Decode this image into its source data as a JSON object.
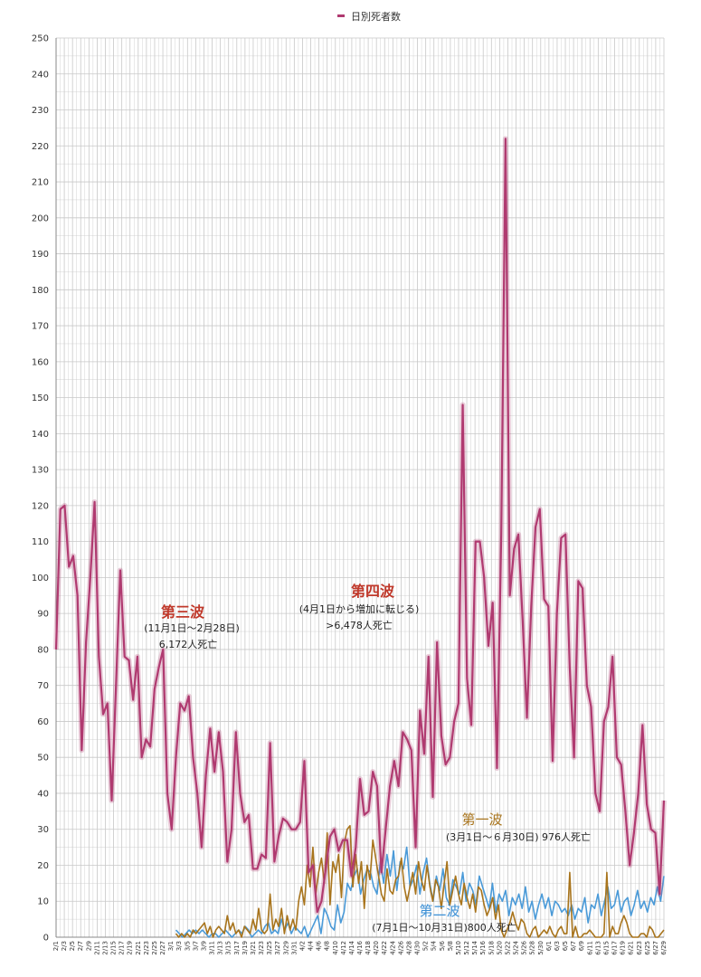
{
  "chart_data": {
    "type": "line",
    "ylim": [
      0,
      250
    ],
    "y_ticks": [
      0,
      10,
      20,
      30,
      40,
      50,
      60,
      70,
      80,
      90,
      100,
      110,
      120,
      130,
      140,
      150,
      160,
      170,
      180,
      190,
      200,
      210,
      220,
      230,
      240,
      250
    ],
    "grid": true,
    "legend": {
      "position": "top-center",
      "entries": [
        "日別死者数"
      ]
    },
    "x_tick_labels": [
      "2/1",
      "2/3",
      "2/5",
      "2/7",
      "2/9",
      "2/11",
      "2/13",
      "2/15",
      "2/17",
      "2/19",
      "2/21",
      "2/23",
      "2/25",
      "2/27",
      "3/1",
      "3/3",
      "3/5",
      "3/7",
      "3/9",
      "3/11",
      "3/13",
      "3/15",
      "3/17",
      "3/19",
      "3/21",
      "3/23",
      "3/25",
      "3/27",
      "3/29",
      "3/31",
      "4/2",
      "4/4",
      "4/6",
      "4/8",
      "4/10",
      "4/12",
      "4/14",
      "4/16",
      "4/18",
      "4/20",
      "4/22",
      "4/24",
      "4/26",
      "4/28",
      "4/30",
      "5/2",
      "5/4",
      "5/6",
      "5/8",
      "5/10",
      "5/12",
      "5/14",
      "5/16",
      "5/18",
      "5/20",
      "5/22",
      "5/24",
      "5/26",
      "5/28",
      "5/30",
      "6/1",
      "6/3",
      "6/5",
      "6/7",
      "6/9",
      "6/11",
      "6/13",
      "6/15",
      "6/17",
      "6/19",
      "6/21",
      "6/23",
      "6/25",
      "6/27",
      "6/29"
    ],
    "series": [
      {
        "name": "日別死者数",
        "color": "#b03a70",
        "start_index": 0,
        "values": [
          80,
          119,
          120,
          103,
          106,
          95,
          52,
          82,
          100,
          121,
          78,
          62,
          65,
          38,
          70,
          102,
          78,
          77,
          66,
          78,
          50,
          55,
          53,
          69,
          75,
          80,
          40,
          30,
          50,
          65,
          63,
          67,
          50,
          40,
          25,
          45,
          58,
          46,
          57,
          46,
          21,
          30,
          57,
          40,
          32,
          34,
          19,
          19,
          23,
          22,
          54,
          21,
          28,
          33,
          32,
          30,
          30,
          32,
          49,
          18,
          20,
          7,
          10,
          19,
          28,
          30,
          24,
          27,
          27,
          17,
          25,
          44,
          34,
          35,
          46,
          42,
          18,
          30,
          42,
          49,
          42,
          57,
          55,
          52,
          25,
          63,
          51,
          78,
          39,
          82,
          56,
          48,
          50,
          60,
          65,
          148,
          72,
          59,
          110,
          110,
          100,
          81,
          93,
          47,
          112,
          222,
          95,
          108,
          112,
          88,
          61,
          92,
          114,
          119,
          94,
          92,
          49,
          90,
          111,
          112,
          75,
          50,
          99,
          97,
          70,
          64,
          40,
          35,
          60,
          64,
          78,
          50,
          48,
          35,
          20,
          29,
          40,
          59,
          37,
          30,
          29,
          12,
          38
        ]
      },
      {
        "name": "第一波",
        "color": "#a8741c",
        "start_index": 28,
        "values": [
          1,
          0,
          1,
          0,
          1,
          0,
          2,
          1,
          2,
          3,
          4,
          1,
          3,
          0,
          2,
          3,
          2,
          1,
          6,
          2,
          4,
          1,
          2,
          0,
          3,
          2,
          1,
          5,
          2,
          8,
          2,
          1,
          2,
          12,
          2,
          5,
          3,
          8,
          1,
          6,
          2,
          5,
          2,
          10,
          14,
          9,
          20,
          14,
          25,
          12,
          18,
          22,
          15,
          29,
          9,
          21,
          18,
          23,
          11,
          26,
          30,
          31,
          14,
          23,
          15,
          21,
          8,
          20,
          16,
          27,
          22,
          17,
          12,
          10,
          19,
          13,
          12,
          16,
          17,
          22,
          14,
          10,
          14,
          18,
          12,
          21,
          16,
          13,
          20,
          14,
          10,
          16,
          14,
          8,
          15,
          21,
          9,
          13,
          17,
          12,
          9,
          15,
          11,
          8,
          12,
          7,
          14,
          13,
          9,
          6,
          8,
          11,
          5,
          9,
          2,
          0,
          2,
          4,
          7,
          4,
          2,
          5,
          4,
          1,
          0,
          2,
          3,
          0,
          1,
          2,
          1,
          3,
          1,
          0,
          2,
          3,
          1,
          1,
          18,
          0,
          3,
          0,
          0,
          1,
          1,
          2,
          1,
          0,
          0,
          0,
          1,
          18,
          0,
          3,
          1,
          1,
          4,
          6,
          4,
          1,
          0,
          0,
          0,
          1,
          1,
          0,
          3,
          2,
          0,
          0,
          1,
          2
        ]
      },
      {
        "name": "第二波",
        "color": "#4a9ad8",
        "start_index": 28,
        "values": [
          2,
          1,
          0,
          1,
          2,
          1,
          2,
          1,
          2,
          1,
          0,
          1,
          1,
          0,
          1,
          2,
          1,
          0,
          1,
          2,
          1,
          3,
          2,
          0,
          1,
          2,
          1,
          3,
          4,
          1,
          2,
          1,
          5,
          2,
          4,
          1,
          3,
          2,
          1,
          3,
          0,
          2,
          4,
          6,
          1,
          8,
          6,
          3,
          2,
          9,
          4,
          7,
          15,
          13,
          17,
          19,
          12,
          16,
          19,
          18,
          14,
          12,
          21,
          15,
          23,
          17,
          24,
          13,
          21,
          19,
          25,
          14,
          16,
          20,
          12,
          18,
          22,
          15,
          10,
          17,
          13,
          19,
          11,
          9,
          16,
          14,
          12,
          18,
          10,
          15,
          13,
          9,
          17,
          14,
          11,
          8,
          15,
          7,
          12,
          10,
          13,
          6,
          11,
          9,
          12,
          8,
          14,
          7,
          10,
          5,
          9,
          12,
          8,
          11,
          6,
          10,
          9,
          7,
          8,
          6,
          9,
          5,
          8,
          7,
          11,
          4,
          9,
          8,
          12,
          6,
          10,
          14,
          8,
          9,
          13,
          7,
          10,
          11,
          6,
          9,
          13,
          8,
          10,
          7,
          11,
          9,
          14,
          10,
          17
        ]
      }
    ]
  },
  "annotations": {
    "wave3": {
      "title": "第三波",
      "period": "(11月1日～2月28日)",
      "deaths": "6,172人死亡"
    },
    "wave4": {
      "title": "第四波",
      "period": "(4月1日から増加に転じる)",
      "deaths": ">6,478人死亡"
    },
    "wave1": {
      "title": "第一波",
      "detail": "(3月1日～６月30日) 976人死亡"
    },
    "wave2": {
      "title": "第二波",
      "detail": "(7月1日～10月31日)800人死亡"
    }
  },
  "colors": {
    "wave3_title": "#c0392b",
    "wave4_title": "#c0392b",
    "wave1_title": "#a8741c",
    "wave2_title": "#3a8fd6",
    "grid": "#c8c8c8"
  }
}
